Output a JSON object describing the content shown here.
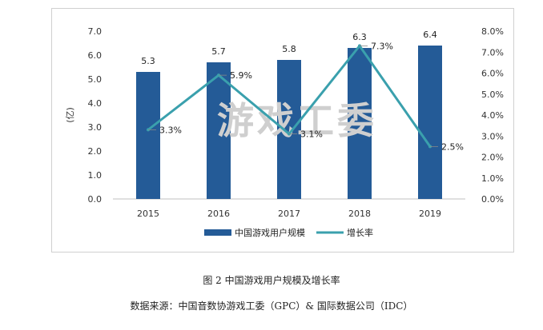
{
  "chart_data": {
    "type": "bar",
    "categories": [
      "2015",
      "2016",
      "2017",
      "2018",
      "2019"
    ],
    "series": [
      {
        "name": "中国游戏用户规模",
        "type": "bar",
        "axis": "left",
        "values": [
          5.3,
          5.7,
          5.8,
          6.3,
          6.4
        ],
        "labels": [
          "5.3",
          "5.7",
          "5.8",
          "6.3",
          "6.4"
        ],
        "color": "#245b97"
      },
      {
        "name": "增长率",
        "type": "line",
        "axis": "right",
        "values": [
          3.3,
          5.9,
          3.1,
          7.3,
          2.5
        ],
        "labels": [
          "3.3%",
          "5.9%",
          "3.1%",
          "7.3%",
          "2.5%"
        ],
        "color": "#3aa0ad"
      }
    ],
    "ylabel": "(亿)",
    "ylim": [
      0,
      7
    ],
    "yticks": [
      "0.0",
      "1.0",
      "2.0",
      "3.0",
      "4.0",
      "5.0",
      "6.0",
      "7.0"
    ],
    "y2lim": [
      0,
      8
    ],
    "y2ticks": [
      "0.0%",
      "1.0%",
      "2.0%",
      "3.0%",
      "4.0%",
      "5.0%",
      "6.0%",
      "7.0%",
      "8.0%"
    ],
    "grid": false,
    "legend": "bottom",
    "watermark": "游戏工委"
  },
  "caption": "图 2  中国游戏用户规模及增长率",
  "source": "数据来源：中国音数协游戏工委（GPC）& 国际数据公司（IDC）"
}
